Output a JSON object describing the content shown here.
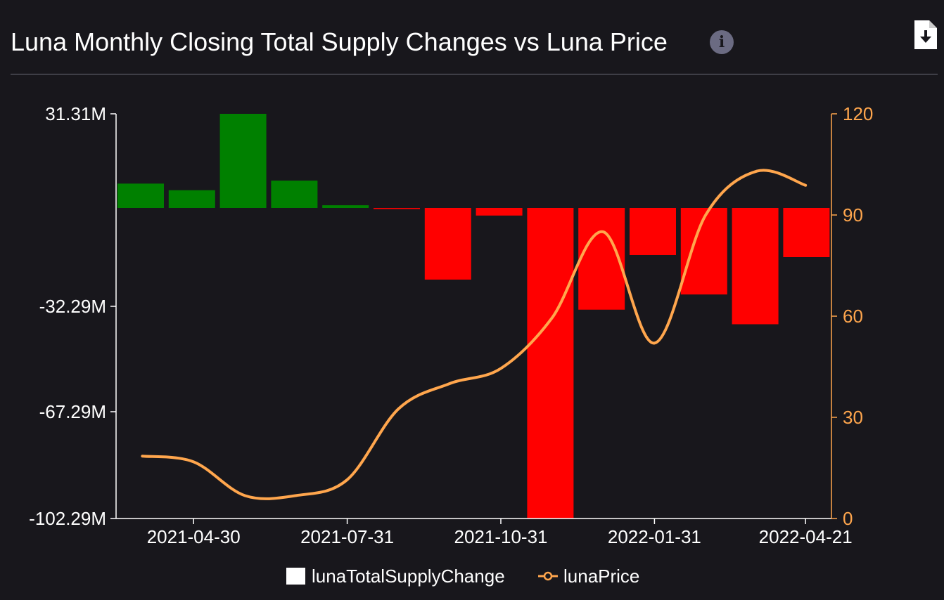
{
  "header": {
    "title": "Luna Monthly Closing Total Supply Changes vs Luna Price",
    "info_icon": "info-icon",
    "download_icon": "download-file-icon"
  },
  "colors": {
    "background": "#18171c",
    "positive_bar": "#008000",
    "negative_bar": "#ff0000",
    "price_line": "#ffa64d",
    "left_axis": "#ffffff",
    "right_axis": "#ffa64d"
  },
  "chart_data": {
    "type": "bar+line",
    "title": "Luna Monthly Closing Total Supply Changes vs Luna Price",
    "x_tick_labels": [
      "2021-04-30",
      "2021-07-31",
      "2021-10-31",
      "2022-01-31",
      "2022-04-21"
    ],
    "y_left": {
      "ticks": [
        31.31,
        -32.29,
        -67.29,
        -102.29
      ],
      "tick_labels": [
        "31.31M",
        "-32.29M",
        "-67.29M",
        "-102.29M"
      ],
      "range": [
        -102.29,
        31.31
      ],
      "unit": "M"
    },
    "y_right": {
      "ticks": [
        0,
        30,
        60,
        90,
        120
      ],
      "tick_labels": [
        "0",
        "30",
        "60",
        "90",
        "120"
      ],
      "range": [
        0,
        120
      ]
    },
    "series": [
      {
        "name": "lunaTotalSupplyChange",
        "kind": "bar",
        "values": [
          8.1,
          5.9,
          31.31,
          9.1,
          0.9,
          -0.3,
          -23.6,
          -2.5,
          -102.29,
          -33.5,
          -15.5,
          -28.5,
          -38.3,
          -16.2
        ]
      },
      {
        "name": "lunaPrice",
        "kind": "line",
        "x_index": [
          0.5,
          1.5,
          2.5,
          3.5,
          4.5,
          5.5,
          6.5,
          7.5,
          8.5,
          9.5,
          10.5,
          11.5,
          12.5,
          13.45
        ],
        "values": [
          18.5,
          16.8,
          6.8,
          6.8,
          11.5,
          32.5,
          40,
          44.5,
          59.5,
          85,
          52,
          90,
          103,
          98.8
        ]
      }
    ],
    "legend": [
      {
        "name": "lunaTotalSupplyChange",
        "symbol": "square"
      },
      {
        "name": "lunaPrice",
        "symbol": "line-circle"
      }
    ],
    "legend_position": "bottom-center",
    "grid": false
  }
}
